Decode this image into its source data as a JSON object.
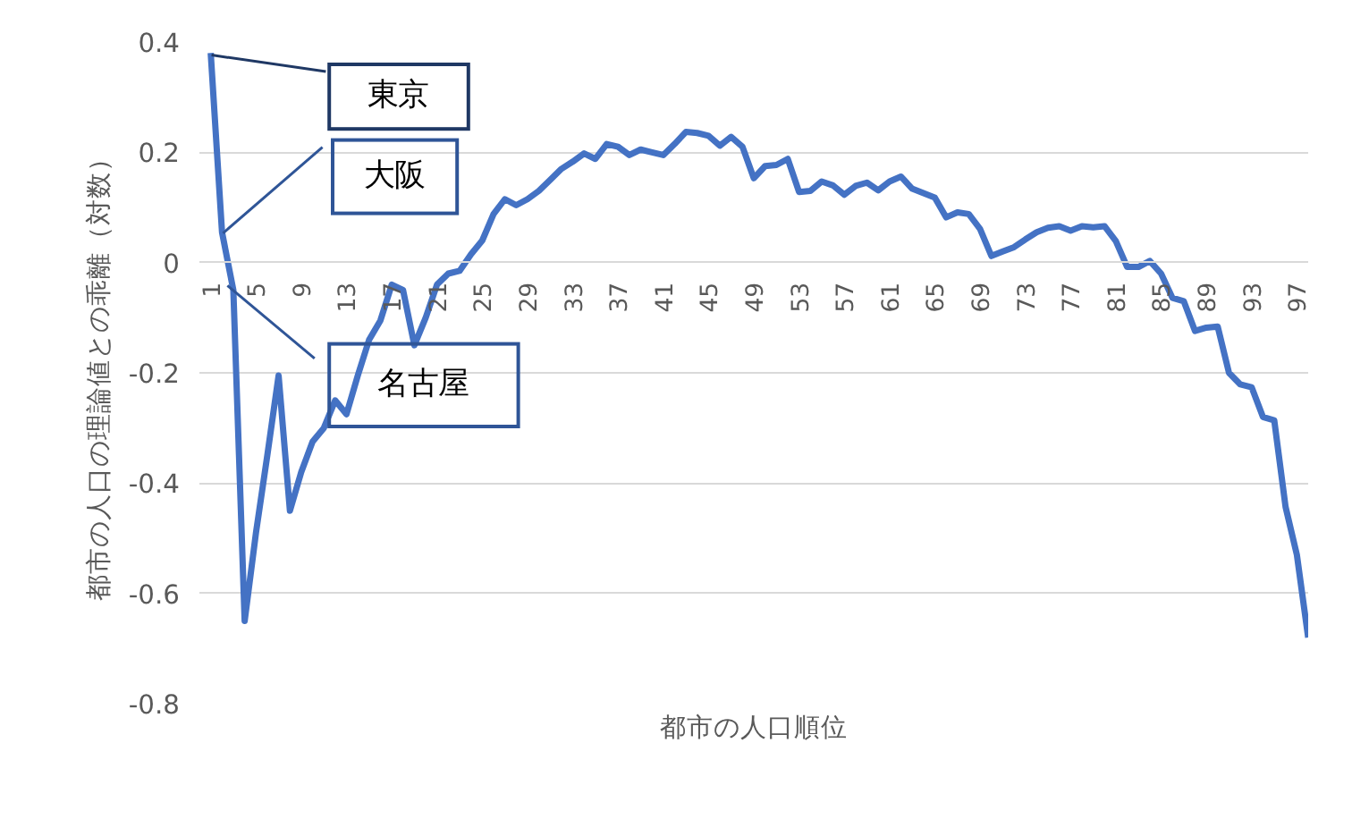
{
  "chart_data": {
    "type": "line",
    "xlabel": "都市の人口順位",
    "ylabel": "都市の人口の理論値との乖離（対数）",
    "categories": [
      "1",
      null,
      null,
      null,
      "5",
      null,
      null,
      null,
      "9",
      null,
      null,
      null,
      "13",
      null,
      null,
      null,
      "17",
      null,
      null,
      null,
      "21",
      null,
      null,
      null,
      "25",
      null,
      null,
      null,
      "29",
      null,
      null,
      null,
      "33",
      null,
      null,
      null,
      "37",
      null,
      null,
      null,
      "41",
      null,
      null,
      null,
      "45",
      null,
      null,
      null,
      "49",
      null,
      null,
      null,
      "53",
      null,
      null,
      null,
      "57",
      null,
      null,
      null,
      "61",
      null,
      null,
      null,
      "65",
      null,
      null,
      null,
      "69",
      null,
      null,
      null,
      "73",
      null,
      null,
      null,
      "77",
      null,
      null,
      null,
      "81",
      null,
      null,
      null,
      "85",
      null,
      null,
      null,
      "89",
      null,
      null,
      null,
      "93",
      null,
      null,
      null,
      "97",
      null
    ],
    "series": [
      {
        "color": "#4472c4",
        "values": [
          0.38,
          0.055,
          -0.05,
          -0.65,
          -0.49,
          -0.35,
          -0.205,
          -0.45,
          -0.38,
          -0.325,
          -0.3,
          -0.25,
          -0.275,
          -0.205,
          -0.14,
          -0.105,
          -0.04,
          -0.05,
          -0.15,
          -0.1,
          -0.04,
          -0.02,
          -0.015,
          0.015,
          0.04,
          0.088,
          0.115,
          0.104,
          0.115,
          0.13,
          0.15,
          0.17,
          0.183,
          0.198,
          0.188,
          0.215,
          0.21,
          0.195,
          0.205,
          0.2,
          0.195,
          0.215,
          0.237,
          0.235,
          0.23,
          0.212,
          0.228,
          0.21,
          0.153,
          0.175,
          0.177,
          0.188,
          0.128,
          0.13,
          0.147,
          0.14,
          0.123,
          0.139,
          0.145,
          0.131,
          0.147,
          0.156,
          0.134,
          0.126,
          0.118,
          0.082,
          0.091,
          0.088,
          0.061,
          0.012,
          0.02,
          0.028,
          0.042,
          0.055,
          0.063,
          0.066,
          0.058,
          0.066,
          0.064,
          0.066,
          0.039,
          -0.008,
          -0.008,
          0.003,
          -0.02,
          -0.064,
          -0.07,
          -0.124,
          -0.118,
          -0.116,
          -0.2,
          -0.221,
          -0.226,
          -0.28,
          -0.286,
          -0.443,
          -0.53,
          -0.68
        ]
      }
    ],
    "ylim": [
      -0.8,
      0.4
    ],
    "yticks": [
      -0.8,
      -0.6,
      -0.4,
      -0.2,
      0,
      0.2,
      0.4
    ],
    "grid": "y",
    "marker": "none",
    "line_style": "solid",
    "annotations": [
      "東京",
      "大阪",
      "名古屋"
    ]
  }
}
